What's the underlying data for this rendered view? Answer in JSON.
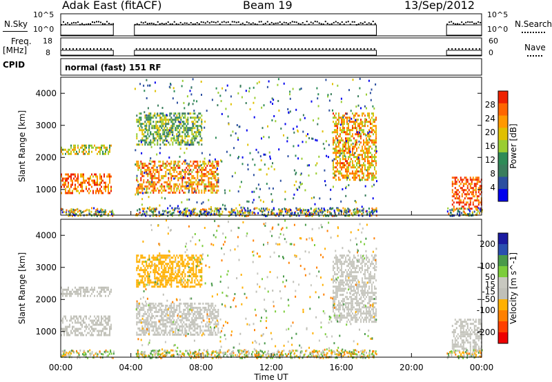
{
  "header": {
    "station": "Adak East (fitACF)",
    "beam": "Beam 19",
    "date": "13/Sep/2012"
  },
  "noise_panel": {
    "left_label": "N.Sky",
    "right_label": "N.Search",
    "left_ticks": [
      "10^5",
      "10^0"
    ],
    "right_ticks": [
      "10^5",
      "10^0"
    ]
  },
  "freq_panel": {
    "left_label_1": "Freq.",
    "left_label_2": "[MHz]",
    "left_ticks": [
      "18",
      "8"
    ],
    "right_label": "Nave",
    "right_ticks": [
      "60",
      "0"
    ]
  },
  "cpid": {
    "label": "CPID",
    "mode": "normal (fast) 151 RF"
  },
  "colors": {
    "power_scale": [
      "#0000ee",
      "#2c4fa0",
      "#3a7d5c",
      "#2e8b57",
      "#9acd32",
      "#e0c000",
      "#ff9900",
      "#ff6600",
      "#ee2200"
    ],
    "velocity_scale": [
      "#1a1aa0",
      "#2a4fb0",
      "#4a9a4a",
      "#7ccd3c",
      "#c8c8c0",
      "#c0c0b8",
      "#ffb000",
      "#ff8000",
      "#ff4000",
      "#ee0000"
    ]
  },
  "chart_data": [
    {
      "type": "heatmap",
      "panel": "power",
      "ylabel": "Slant Range [km]",
      "y_ticks": [
        1000,
        2000,
        3000,
        4000
      ],
      "ylim": [
        200,
        4500
      ],
      "colorbar_label": "Power [dB]",
      "colorbar_ticks": [
        4,
        8,
        12,
        16,
        20,
        24,
        28
      ],
      "colorbar_range": [
        0,
        32
      ],
      "data_gaps_ut": [
        [
          3.0,
          4.2
        ],
        [
          18.0,
          22.0
        ]
      ],
      "echo_bands": [
        {
          "start_ut": 0.0,
          "end_ut": 2.9,
          "range_km": [
            900,
            1500
          ],
          "power_db": 26
        },
        {
          "start_ut": 0.0,
          "end_ut": 2.9,
          "range_km": [
            2100,
            2400
          ],
          "power_db": 18
        },
        {
          "start_ut": 4.3,
          "end_ut": 9.0,
          "range_km": [
            900,
            1900
          ],
          "power_db": 24
        },
        {
          "start_ut": 4.3,
          "end_ut": 8.0,
          "range_km": [
            2400,
            3400
          ],
          "power_db": 14
        },
        {
          "start_ut": 15.5,
          "end_ut": 18.0,
          "range_km": [
            1300,
            3400
          ],
          "power_db": 22
        },
        {
          "start_ut": 22.3,
          "end_ut": 24.0,
          "range_km": [
            400,
            1400
          ],
          "power_db": 28
        }
      ]
    },
    {
      "type": "heatmap",
      "panel": "velocity",
      "xlabel": "Time UT",
      "ylabel": "Slant Range [km]",
      "x_ticks": [
        "00:00",
        "04:00",
        "08:00",
        "12:00",
        "16:00",
        "20:00",
        "00:00"
      ],
      "xlim_ut": [
        0,
        24
      ],
      "y_ticks": [
        1000,
        2000,
        3000,
        4000
      ],
      "ylim": [
        200,
        4500
      ],
      "colorbar_label": "Velocity [m s^-1]",
      "colorbar_ticks": [
        200,
        100,
        50,
        15,
        -15,
        -50,
        -100,
        -200
      ],
      "colorbar_range": [
        -250,
        250
      ],
      "data_gaps_ut": [
        [
          3.0,
          4.2
        ],
        [
          18.0,
          22.0
        ]
      ],
      "echo_bands": [
        {
          "start_ut": 0.0,
          "end_ut": 2.9,
          "range_km": [
            900,
            1500
          ],
          "velocity_ms": 0
        },
        {
          "start_ut": 0.0,
          "end_ut": 2.9,
          "range_km": [
            2100,
            2400
          ],
          "velocity_ms": 0
        },
        {
          "start_ut": 4.3,
          "end_ut": 9.0,
          "range_km": [
            900,
            1900
          ],
          "velocity_ms": 0
        },
        {
          "start_ut": 4.3,
          "end_ut": 8.0,
          "range_km": [
            2400,
            3400
          ],
          "velocity_ms": -60
        },
        {
          "start_ut": 15.5,
          "end_ut": 18.0,
          "range_km": [
            1300,
            3400
          ],
          "velocity_ms": 10
        },
        {
          "start_ut": 22.3,
          "end_ut": 24.0,
          "range_km": [
            400,
            1400
          ],
          "velocity_ms": 0
        }
      ]
    }
  ]
}
